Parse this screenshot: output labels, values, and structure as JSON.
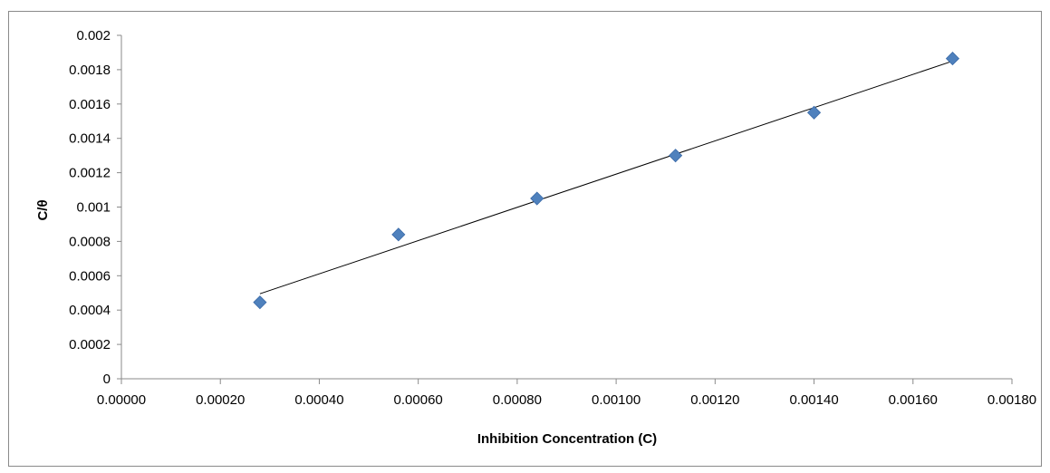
{
  "chart_data": {
    "type": "scatter",
    "title": "",
    "xlabel": "Inhibition Concentration (C)",
    "ylabel": "C/θ",
    "xlim": [
      0,
      0.0018
    ],
    "ylim": [
      0,
      0.002
    ],
    "x_ticks": [
      "0.00000",
      "0.00020",
      "0.00040",
      "0.00060",
      "0.00080",
      "0.00100",
      "0.00120",
      "0.00140",
      "0.00160",
      "0.00180"
    ],
    "x_tick_values": [
      0,
      0.0002,
      0.0004,
      0.0006,
      0.0008,
      0.001,
      0.0012,
      0.0014,
      0.0016,
      0.0018
    ],
    "y_ticks": [
      "0",
      "0.0002",
      "0.0004",
      "0.0006",
      "0.0008",
      "0.001",
      "0.0012",
      "0.0014",
      "0.0016",
      "0.0018",
      "0.002"
    ],
    "y_tick_values": [
      0,
      0.0002,
      0.0004,
      0.0006,
      0.0008,
      0.001,
      0.0012,
      0.0014,
      0.0016,
      0.0018,
      0.002
    ],
    "grid": false,
    "legend": "none",
    "series": [
      {
        "marker": "diamond",
        "color": "#4f81bd",
        "points": [
          {
            "x": 0.00028,
            "y": 0.000445
          },
          {
            "x": 0.00056,
            "y": 0.00084
          },
          {
            "x": 0.00084,
            "y": 0.00105
          },
          {
            "x": 0.00112,
            "y": 0.0013
          },
          {
            "x": 0.0014,
            "y": 0.00155
          },
          {
            "x": 0.00168,
            "y": 0.001865
          }
        ]
      }
    ],
    "trendline": {
      "type": "linear",
      "color": "#000000",
      "from": {
        "x": 0.00028,
        "y": 0.000495
      },
      "to": {
        "x": 0.00168,
        "y": 0.00185
      }
    }
  }
}
